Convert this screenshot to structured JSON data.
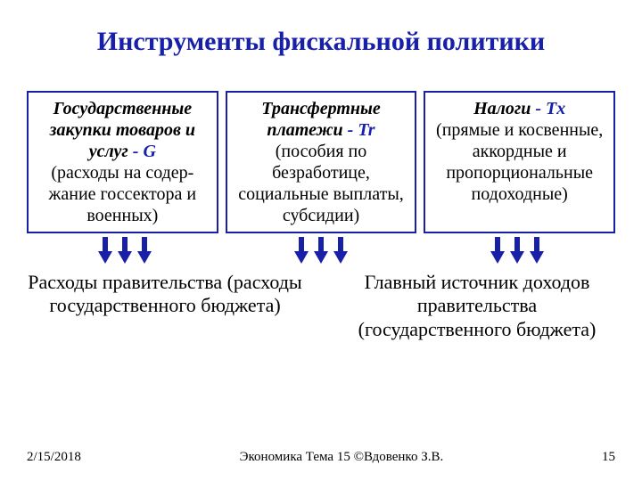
{
  "title": "Инструменты фискальной политики",
  "title_color": "#1820a8",
  "border_color": "#1820a8",
  "arrow_color": "#1820a8",
  "boxes": [
    {
      "heading_lines": [
        "Государственные",
        "закупки товаров и"
      ],
      "heading_last": "услуг",
      "symbol": " - G",
      "body": "(расходы на содер-жание госсектора и военных)"
    },
    {
      "heading_lines": [
        "Трансфертные"
      ],
      "heading_last": "платежи",
      "symbol": " - Tr",
      "body": "(пособия по безработице, социальные выплаты, субсидии)"
    },
    {
      "heading_lines": [],
      "heading_last": "Налоги",
      "symbol": " - Tx",
      "body": "(прямые и косвенные, аккордные и пропорциональные подоходные)"
    }
  ],
  "bottom": [
    "Расходы правительства (расходы государственного бюджета)",
    "Главный источник доходов правительства (государственного бюджета)"
  ],
  "footer": {
    "date": "2/15/2018",
    "center": "Экономика Тема 15 ©Вдовенко З.В.",
    "page": "15"
  }
}
